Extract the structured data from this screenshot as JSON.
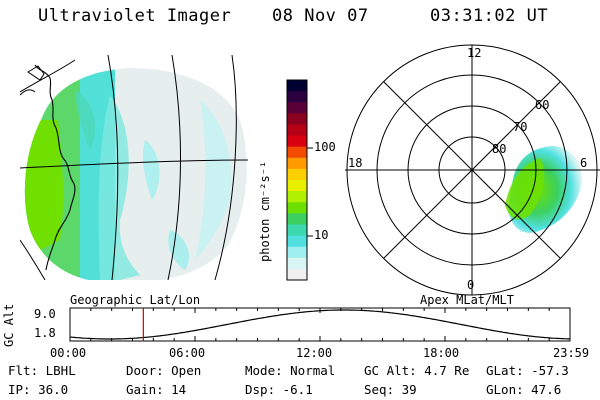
{
  "header": {
    "title": "Ultraviolet Imager",
    "date": "08 Nov 07",
    "time": "03:31:02 UT"
  },
  "colorbar": {
    "unit_label": "photon cm⁻²s⁻¹",
    "ticks": [
      "100",
      "10"
    ],
    "colors": [
      "#000033",
      "#2b003f",
      "#5a0038",
      "#8a001e",
      "#b50015",
      "#d80010",
      "#f24a00",
      "#ff9a00",
      "#ffd000",
      "#e8f000",
      "#b0f000",
      "#6ee000",
      "#3cd060",
      "#3cd8b0",
      "#50e0e0",
      "#9ef0f0",
      "#d8f4f4",
      "#f0f0f0"
    ]
  },
  "left_map": {
    "label": "Geographic Lat/Lon"
  },
  "right_map": {
    "label": "Apex MLat/MLT",
    "mlt_labels": [
      "12",
      "18",
      "6",
      "0"
    ],
    "lat_labels": [
      "60",
      "70",
      "80"
    ]
  },
  "altitude_plot": {
    "ylabel": "GC Alt",
    "yticks": [
      "9.0",
      "1.8"
    ],
    "xticks": [
      "00:00",
      "06:00",
      "12:00",
      "18:00",
      "23:59"
    ],
    "current_hour": 3.52,
    "marker_color": "#cc0000"
  },
  "footer": {
    "flt": "Flt: LBHL",
    "ip": "IP: 36.0",
    "door": "Door: Open",
    "gain": "Gain: 14",
    "mode": "Mode: Normal",
    "dsp": "Dsp:   -6.1",
    "gc_alt": "GC Alt: 4.7 Re",
    "seq": "Seq: 39",
    "glat": "GLat: -57.3",
    "glon": "GLon:  47.6"
  }
}
